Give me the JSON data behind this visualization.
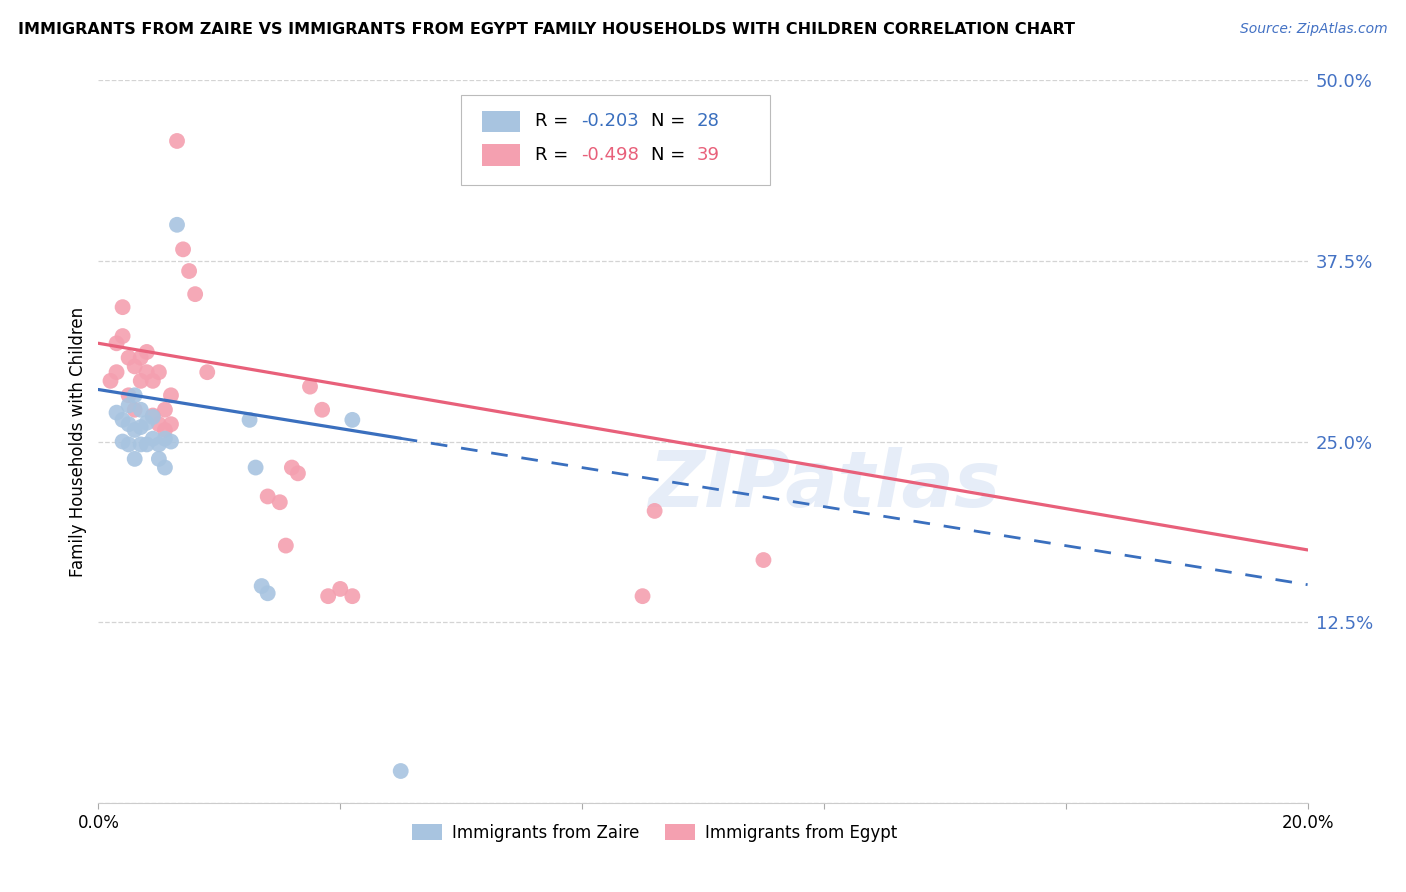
{
  "title": "IMMIGRANTS FROM ZAIRE VS IMMIGRANTS FROM EGYPT FAMILY HOUSEHOLDS WITH CHILDREN CORRELATION CHART",
  "source": "Source: ZipAtlas.com",
  "ylabel": "Family Households with Children",
  "y_ticks": [
    0.0,
    0.125,
    0.25,
    0.375,
    0.5
  ],
  "y_tick_labels": [
    "",
    "12.5%",
    "25.0%",
    "37.5%",
    "50.0%"
  ],
  "x_min": 0.0,
  "x_max": 0.2,
  "y_min": 0.0,
  "y_max": 0.5,
  "zaire_color": "#a8c4e0",
  "egypt_color": "#f4a0b0",
  "zaire_line_color": "#3a6fbe",
  "egypt_line_color": "#e8607a",
  "legend_R_zaire": "-0.203",
  "legend_N_zaire": "28",
  "legend_R_egypt": "-0.498",
  "legend_N_egypt": "39",
  "zaire_x": [
    0.003,
    0.004,
    0.004,
    0.005,
    0.005,
    0.005,
    0.006,
    0.006,
    0.006,
    0.007,
    0.007,
    0.007,
    0.008,
    0.008,
    0.009,
    0.009,
    0.01,
    0.01,
    0.011,
    0.011,
    0.012,
    0.013,
    0.025,
    0.026,
    0.027,
    0.028,
    0.042,
    0.05
  ],
  "zaire_y": [
    0.27,
    0.265,
    0.25,
    0.275,
    0.262,
    0.248,
    0.282,
    0.258,
    0.238,
    0.272,
    0.26,
    0.248,
    0.263,
    0.248,
    0.252,
    0.267,
    0.248,
    0.238,
    0.252,
    0.232,
    0.25,
    0.4,
    0.265,
    0.232,
    0.15,
    0.145,
    0.265,
    0.022
  ],
  "egypt_x": [
    0.002,
    0.003,
    0.003,
    0.004,
    0.004,
    0.005,
    0.005,
    0.006,
    0.006,
    0.007,
    0.007,
    0.008,
    0.008,
    0.009,
    0.009,
    0.01,
    0.01,
    0.011,
    0.011,
    0.012,
    0.012,
    0.013,
    0.014,
    0.015,
    0.016,
    0.018,
    0.028,
    0.03,
    0.031,
    0.032,
    0.033,
    0.035,
    0.037,
    0.038,
    0.04,
    0.042,
    0.09,
    0.092,
    0.11
  ],
  "egypt_y": [
    0.292,
    0.318,
    0.298,
    0.343,
    0.323,
    0.308,
    0.282,
    0.302,
    0.272,
    0.308,
    0.292,
    0.312,
    0.298,
    0.268,
    0.292,
    0.298,
    0.262,
    0.258,
    0.272,
    0.262,
    0.282,
    0.458,
    0.383,
    0.368,
    0.352,
    0.298,
    0.212,
    0.208,
    0.178,
    0.232,
    0.228,
    0.288,
    0.272,
    0.143,
    0.148,
    0.143,
    0.143,
    0.202,
    0.168
  ],
  "watermark": "ZIPatlas",
  "background_color": "#ffffff",
  "grid_color": "#d0d0d0"
}
